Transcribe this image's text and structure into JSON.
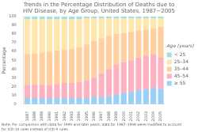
{
  "chart_data": {
    "type": "bar",
    "title": [
      "Trends in the Percentage Distribution of Deaths due to",
      "HIV Disease, by Age Group, United States, 1987−2005"
    ],
    "ylabel": "Percentage",
    "categories": [
      "1987",
      "1988",
      "1989",
      "1990",
      "1991",
      "1992",
      "1993",
      "1994",
      "1995",
      "1996",
      "1997",
      "1998",
      "1999",
      "2000",
      "2001",
      "2002",
      "2003",
      "2004",
      "2005"
    ],
    "series": [
      {
        "name": "≥ 55",
        "values": [
          7,
          7,
          7,
          7,
          7,
          7,
          7,
          7,
          7,
          8,
          8,
          9,
          11,
          13,
          14,
          16,
          17,
          19,
          17
        ]
      },
      {
        "name": "45–54",
        "values": [
          15,
          15,
          15,
          15,
          16,
          17,
          17,
          18,
          20,
          22,
          27,
          31,
          34,
          35,
          36,
          37,
          38,
          38,
          36
        ]
      },
      {
        "name": "35–44",
        "values": [
          35,
          36,
          37,
          38,
          38,
          38,
          39,
          40,
          41,
          42,
          40,
          38,
          35,
          33,
          32,
          31,
          30,
          29,
          35
        ]
      },
      {
        "name": "25–34",
        "values": [
          40,
          39,
          38,
          37,
          36,
          35,
          34,
          32,
          30,
          26,
          23,
          20,
          18,
          17,
          16,
          14,
          13,
          12,
          10
        ]
      },
      {
        "name": "< 25",
        "values": [
          3,
          3,
          3,
          3,
          3,
          3,
          3,
          3,
          2,
          2,
          2,
          2,
          2,
          2,
          2,
          2,
          2,
          2,
          2
        ]
      }
    ],
    "stacked": true,
    "ylim": [
      0,
      100
    ],
    "yticks": [
      0,
      10,
      20,
      30,
      40,
      50,
      60,
      70,
      80,
      90,
      100
    ],
    "grid": false,
    "legend": "right",
    "legend_title": "Age (years)",
    "note": [
      "Note: For comparison with data for 1999 and later years, data for 1987–1998 were modified to account",
      "for ICD-10 rules instead of ICD-9 rules."
    ]
  }
}
